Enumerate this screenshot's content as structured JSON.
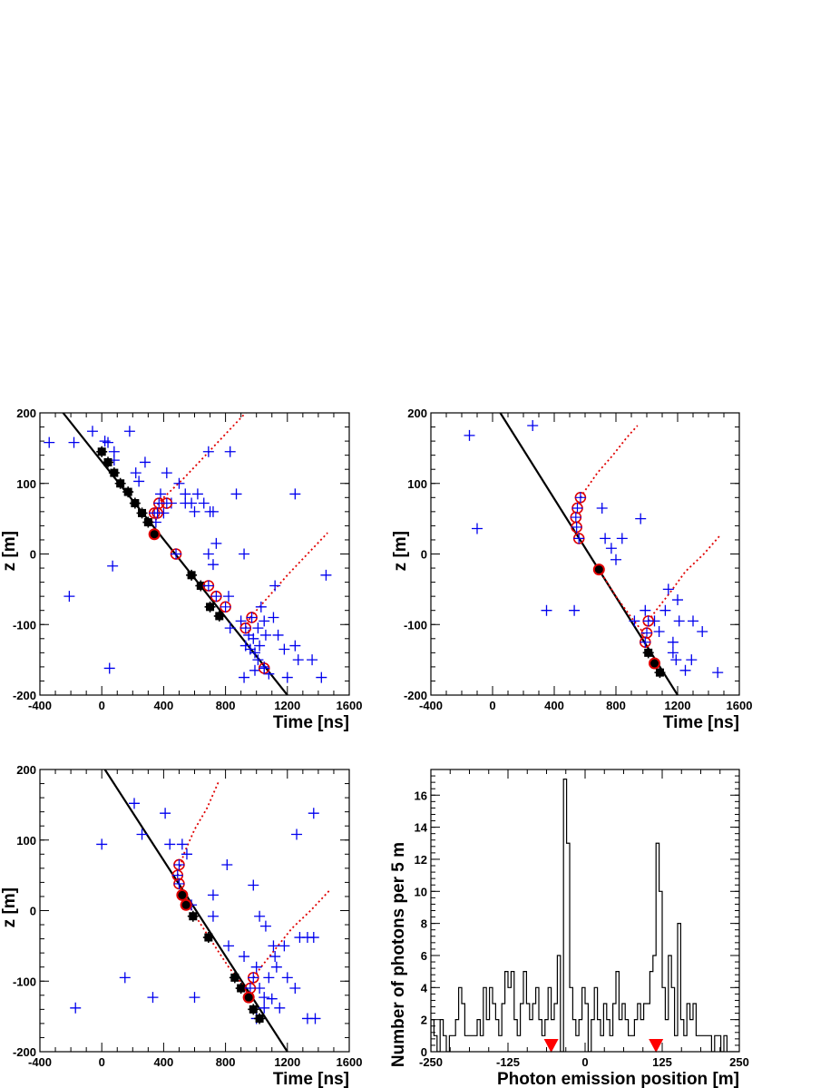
{
  "chart_data": [
    {
      "type": "scatter",
      "panel": "top-left",
      "xlabel": "Time [ns]",
      "ylabel": "z [m]",
      "xlim": [
        -400,
        1600
      ],
      "ylim": [
        -200,
        200
      ],
      "xticks": [
        "-400",
        "0",
        "400",
        "800",
        "1200",
        "1600"
      ],
      "yticks": [
        "200",
        "100",
        "0",
        "-100",
        "-200"
      ],
      "track_line": [
        [
          -250,
          200
        ],
        [
          1200,
          -200
        ]
      ],
      "cone_curves": [
        [
          [
            360,
            70
          ],
          [
            400,
            80
          ],
          [
            520,
            105
          ],
          [
            650,
            135
          ],
          [
            800,
            170
          ],
          [
            930,
            200
          ]
        ],
        [
          [
            960,
            -90
          ],
          [
            1000,
            -80
          ],
          [
            1100,
            -55
          ],
          [
            1200,
            -30
          ],
          [
            1330,
            0
          ],
          [
            1460,
            30
          ]
        ],
        [
          [
            320,
            45
          ],
          [
            360,
            50
          ]
        ],
        [
          [
            930,
            -105
          ],
          [
            960,
            -90
          ]
        ]
      ],
      "black_hits": [
        [
          0,
          145
        ],
        [
          40,
          130
        ],
        [
          80,
          115
        ],
        [
          120,
          100
        ],
        [
          170,
          88
        ],
        [
          215,
          72
        ],
        [
          260,
          58
        ],
        [
          300,
          45
        ],
        [
          580,
          -30
        ],
        [
          640,
          -45
        ],
        [
          700,
          -75
        ],
        [
          760,
          -88
        ]
      ],
      "red_ring_hits": [
        [
          340,
          58
        ],
        [
          370,
          72
        ],
        [
          420,
          72
        ],
        [
          360,
          58
        ],
        [
          480,
          0
        ],
        [
          690,
          -45
        ],
        [
          740,
          -60
        ],
        [
          800,
          -75
        ],
        [
          930,
          -105
        ],
        [
          970,
          -90
        ],
        [
          1050,
          -162
        ]
      ],
      "red_filled_hits": [
        [
          340,
          28
        ]
      ],
      "blue_hits": [
        [
          -340,
          158
        ],
        [
          -180,
          158
        ],
        [
          -60,
          174
        ],
        [
          20,
          160
        ],
        [
          40,
          158
        ],
        [
          80,
          145
        ],
        [
          180,
          174
        ],
        [
          80,
          133
        ],
        [
          220,
          115
        ],
        [
          280,
          130
        ],
        [
          420,
          115
        ],
        [
          500,
          100
        ],
        [
          240,
          103
        ],
        [
          380,
          85
        ],
        [
          540,
          85
        ],
        [
          580,
          72
        ],
        [
          600,
          60
        ],
        [
          620,
          85
        ],
        [
          700,
          60
        ],
        [
          720,
          60
        ],
        [
          690,
          145
        ],
        [
          830,
          145
        ],
        [
          870,
          85
        ],
        [
          450,
          72
        ],
        [
          540,
          72
        ],
        [
          660,
          72
        ],
        [
          400,
          58
        ],
        [
          350,
          45
        ],
        [
          690,
          0
        ],
        [
          720,
          -15
        ],
        [
          920,
          0
        ],
        [
          740,
          15
        ],
        [
          1250,
          85
        ],
        [
          1450,
          -30
        ],
        [
          70,
          -17
        ],
        [
          -210,
          -60
        ],
        [
          50,
          -162
        ],
        [
          820,
          -60
        ],
        [
          830,
          -105
        ],
        [
          900,
          -95
        ],
        [
          950,
          -115
        ],
        [
          980,
          -120
        ],
        [
          1010,
          -105
        ],
        [
          1030,
          -75
        ],
        [
          1050,
          -95
        ],
        [
          1020,
          -130
        ],
        [
          990,
          -140
        ],
        [
          1060,
          -115
        ],
        [
          1120,
          -45
        ],
        [
          1110,
          -90
        ],
        [
          1140,
          -115
        ],
        [
          1180,
          -135
        ],
        [
          1250,
          -130
        ],
        [
          1270,
          -150
        ],
        [
          1360,
          -150
        ],
        [
          1420,
          -175
        ],
        [
          1200,
          -175
        ],
        [
          1010,
          -150
        ],
        [
          1050,
          -160
        ],
        [
          1080,
          -170
        ],
        [
          920,
          -175
        ],
        [
          960,
          -135
        ],
        [
          930,
          -130
        ],
        [
          990,
          -165
        ]
      ]
    },
    {
      "type": "scatter",
      "panel": "top-right",
      "xlabel": "Time [ns]",
      "ylabel": "z [m]",
      "xlim": [
        -400,
        1600
      ],
      "ylim": [
        -200,
        200
      ],
      "xticks": [
        "-400",
        "0",
        "400",
        "800",
        "1200",
        "1600"
      ],
      "yticks": [
        "200",
        "100",
        "0",
        "-100",
        "-200"
      ],
      "track_line": [
        [
          50,
          200
        ],
        [
          1200,
          -200
        ]
      ],
      "cone_curves": [
        [
          [
            570,
            80
          ],
          [
            600,
            90
          ],
          [
            680,
            115
          ],
          [
            780,
            140
          ],
          [
            870,
            165
          ],
          [
            940,
            182
          ]
        ],
        [
          [
            1010,
            -95
          ],
          [
            1060,
            -80
          ],
          [
            1150,
            -55
          ],
          [
            1250,
            -25
          ],
          [
            1370,
            0
          ],
          [
            1470,
            25
          ]
        ],
        [
          [
            690,
            -22
          ],
          [
            800,
            -60
          ],
          [
            900,
            -90
          ],
          [
            990,
            -115
          ]
        ]
      ],
      "black_hits": [
        [
          690,
          -22
        ],
        [
          1010,
          -140
        ],
        [
          1085,
          -168
        ]
      ],
      "red_ring_hits": [
        [
          570,
          80
        ],
        [
          550,
          65
        ],
        [
          540,
          52
        ],
        [
          545,
          38
        ],
        [
          560,
          22
        ],
        [
          1010,
          -95
        ],
        [
          1000,
          -112
        ],
        [
          990,
          -125
        ]
      ],
      "red_filled_hits": [
        [
          690,
          -22
        ],
        [
          1050,
          -155
        ]
      ],
      "blue_hits": [
        [
          -150,
          168
        ],
        [
          -100,
          36
        ],
        [
          260,
          182
        ],
        [
          350,
          -80
        ],
        [
          530,
          -80
        ],
        [
          710,
          65
        ],
        [
          730,
          22
        ],
        [
          770,
          8
        ],
        [
          800,
          -8
        ],
        [
          840,
          22
        ],
        [
          960,
          50
        ],
        [
          920,
          -95
        ],
        [
          990,
          -80
        ],
        [
          1050,
          -95
        ],
        [
          1080,
          -110
        ],
        [
          1120,
          -80
        ],
        [
          1170,
          -125
        ],
        [
          1140,
          -50
        ],
        [
          1200,
          -65
        ],
        [
          1210,
          -95
        ],
        [
          1170,
          -140
        ],
        [
          1190,
          -150
        ],
        [
          1250,
          -165
        ],
        [
          1290,
          -150
        ],
        [
          1300,
          -95
        ],
        [
          1360,
          -110
        ],
        [
          1460,
          -168
        ]
      ]
    },
    {
      "type": "scatter",
      "panel": "bottom-left",
      "xlabel": "Time [ns]",
      "ylabel": "z [m]",
      "xlim": [
        -400,
        1600
      ],
      "ylim": [
        -200,
        200
      ],
      "xticks": [
        "-400",
        "0",
        "400",
        "800",
        "1200",
        "1600"
      ],
      "yticks": [
        "200",
        "100",
        "0",
        "-100",
        "-200"
      ],
      "track_line": [
        [
          20,
          200
        ],
        [
          1200,
          -200
        ]
      ],
      "cone_curves": [
        [
          [
            490,
            50
          ],
          [
            530,
            80
          ],
          [
            600,
            115
          ],
          [
            680,
            145
          ],
          [
            760,
            185
          ]
        ],
        [
          [
            980,
            -95
          ],
          [
            1030,
            -80
          ],
          [
            1120,
            -55
          ],
          [
            1230,
            -25
          ],
          [
            1350,
            0
          ],
          [
            1470,
            28
          ]
        ],
        [
          [
            560,
            8
          ],
          [
            700,
            -40
          ],
          [
            820,
            -80
          ],
          [
            930,
            -110
          ]
        ]
      ],
      "black_hits": [
        [
          520,
          22
        ],
        [
          590,
          -8
        ],
        [
          690,
          -38
        ],
        [
          860,
          -95
        ],
        [
          900,
          -110
        ],
        [
          980,
          -140
        ],
        [
          1020,
          -153
        ]
      ],
      "red_ring_hits": [
        [
          500,
          65
        ],
        [
          490,
          50
        ],
        [
          500,
          38
        ],
        [
          980,
          -95
        ],
        [
          960,
          -110
        ],
        [
          950,
          -123
        ]
      ],
      "red_filled_hits": [
        [
          520,
          22
        ],
        [
          545,
          8
        ],
        [
          950,
          -123
        ]
      ],
      "blue_hits": [
        [
          0,
          94
        ],
        [
          -170,
          -138
        ],
        [
          150,
          -95
        ],
        [
          210,
          152
        ],
        [
          260,
          108
        ],
        [
          330,
          -123
        ],
        [
          410,
          138
        ],
        [
          440,
          94
        ],
        [
          520,
          94
        ],
        [
          550,
          80
        ],
        [
          580,
          8
        ],
        [
          600,
          -123
        ],
        [
          720,
          22
        ],
        [
          720,
          -8
        ],
        [
          810,
          65
        ],
        [
          820,
          -50
        ],
        [
          920,
          -65
        ],
        [
          980,
          36
        ],
        [
          1020,
          -8
        ],
        [
          1060,
          -22
        ],
        [
          1000,
          -80
        ],
        [
          1020,
          -110
        ],
        [
          1080,
          -95
        ],
        [
          1050,
          -138
        ],
        [
          1110,
          -50
        ],
        [
          1120,
          -65
        ],
        [
          1130,
          -80
        ],
        [
          1150,
          -138
        ],
        [
          1100,
          -125
        ],
        [
          1180,
          -50
        ],
        [
          1200,
          -95
        ],
        [
          1250,
          -110
        ],
        [
          1260,
          108
        ],
        [
          1280,
          -38
        ],
        [
          1330,
          -38
        ],
        [
          1370,
          -38
        ],
        [
          1330,
          -153
        ],
        [
          1380,
          -153
        ],
        [
          1370,
          138
        ],
        [
          1000,
          -153
        ],
        [
          1050,
          -123
        ]
      ]
    },
    {
      "type": "histogram",
      "panel": "bottom-right",
      "xlabel": "Photon emission position [m]",
      "ylabel": "Number of photons per 5 m",
      "xlim": [
        -250,
        250
      ],
      "ylim": [
        0,
        17.6
      ],
      "bin_width": 5,
      "xticks": [
        "-250",
        "-125",
        "0",
        "125",
        "250"
      ],
      "yticks": [
        "0",
        "2",
        "4",
        "6",
        "8",
        "10",
        "12",
        "14",
        "16"
      ],
      "values": [
        2,
        1,
        0,
        2,
        1,
        0,
        1,
        1,
        2,
        4,
        3,
        1,
        1,
        1,
        1,
        2,
        1,
        4,
        2,
        4,
        3,
        2,
        1,
        3,
        5,
        4,
        5,
        2,
        1,
        3,
        5,
        3,
        2,
        3,
        4,
        2,
        1,
        2,
        4,
        2,
        3,
        6,
        0,
        17,
        13,
        4,
        2,
        1,
        2,
        4,
        3,
        0,
        2,
        4,
        2,
        1,
        3,
        2,
        1,
        3,
        5,
        2,
        3,
        2,
        1,
        1,
        2,
        3,
        2,
        3,
        3,
        5,
        6,
        13,
        10,
        4,
        2,
        6,
        4,
        1,
        8,
        2,
        1,
        3,
        2,
        3,
        1,
        1,
        1,
        1,
        1,
        0,
        1,
        1,
        0,
        1,
        0,
        0,
        0,
        0
      ],
      "markers": [
        -55,
        115
      ],
      "marker_color": "#ff0000"
    }
  ],
  "colors": {
    "track": "#000000",
    "cone": "#e00000",
    "blue_hits": "#0000ee",
    "red_rings": "#e00000"
  }
}
